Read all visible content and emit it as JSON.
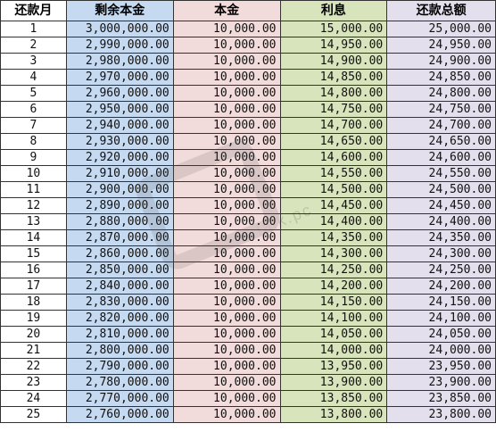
{
  "headers": {
    "month": "还款月",
    "remaining": "剩余本金",
    "principal": "本金",
    "interest": "利息",
    "total": "还款总额"
  },
  "rows": [
    {
      "month": "1",
      "remaining": "3,000,000.00",
      "principal": "10,000.00",
      "interest": "15,000.00",
      "total": "25,000.00"
    },
    {
      "month": "2",
      "remaining": "2,990,000.00",
      "principal": "10,000.00",
      "interest": "14,950.00",
      "total": "24,950.00"
    },
    {
      "month": "3",
      "remaining": "2,980,000.00",
      "principal": "10,000.00",
      "interest": "14,900.00",
      "total": "24,900.00"
    },
    {
      "month": "4",
      "remaining": "2,970,000.00",
      "principal": "10,000.00",
      "interest": "14,850.00",
      "total": "24,850.00"
    },
    {
      "month": "5",
      "remaining": "2,960,000.00",
      "principal": "10,000.00",
      "interest": "14,800.00",
      "total": "24,800.00"
    },
    {
      "month": "6",
      "remaining": "2,950,000.00",
      "principal": "10,000.00",
      "interest": "14,750.00",
      "total": "24,750.00"
    },
    {
      "month": "7",
      "remaining": "2,940,000.00",
      "principal": "10,000.00",
      "interest": "14,700.00",
      "total": "24,700.00"
    },
    {
      "month": "8",
      "remaining": "2,930,000.00",
      "principal": "10,000.00",
      "interest": "14,650.00",
      "total": "24,650.00"
    },
    {
      "month": "9",
      "remaining": "2,920,000.00",
      "principal": "10,000.00",
      "interest": "14,600.00",
      "total": "24,600.00"
    },
    {
      "month": "10",
      "remaining": "2,910,000.00",
      "principal": "10,000.00",
      "interest": "14,550.00",
      "total": "24,550.00"
    },
    {
      "month": "11",
      "remaining": "2,900,000.00",
      "principal": "10,000.00",
      "interest": "14,500.00",
      "total": "24,500.00"
    },
    {
      "month": "12",
      "remaining": "2,890,000.00",
      "principal": "10,000.00",
      "interest": "14,450.00",
      "total": "24,450.00"
    },
    {
      "month": "13",
      "remaining": "2,880,000.00",
      "principal": "10,000.00",
      "interest": "14,400.00",
      "total": "24,400.00"
    },
    {
      "month": "14",
      "remaining": "2,870,000.00",
      "principal": "10,000.00",
      "interest": "14,350.00",
      "total": "24,350.00"
    },
    {
      "month": "15",
      "remaining": "2,860,000.00",
      "principal": "10,000.00",
      "interest": "14,300.00",
      "total": "24,300.00"
    },
    {
      "month": "16",
      "remaining": "2,850,000.00",
      "principal": "10,000.00",
      "interest": "14,250.00",
      "total": "24,250.00"
    },
    {
      "month": "17",
      "remaining": "2,840,000.00",
      "principal": "10,000.00",
      "interest": "14,200.00",
      "total": "24,200.00"
    },
    {
      "month": "18",
      "remaining": "2,830,000.00",
      "principal": "10,000.00",
      "interest": "14,150.00",
      "total": "24,150.00"
    },
    {
      "month": "19",
      "remaining": "2,820,000.00",
      "principal": "10,000.00",
      "interest": "14,100.00",
      "total": "24,100.00"
    },
    {
      "month": "20",
      "remaining": "2,810,000.00",
      "principal": "10,000.00",
      "interest": "14,050.00",
      "total": "24,050.00"
    },
    {
      "month": "21",
      "remaining": "2,800,000.00",
      "principal": "10,000.00",
      "interest": "14,000.00",
      "total": "24,000.00"
    },
    {
      "month": "22",
      "remaining": "2,790,000.00",
      "principal": "10,000.00",
      "interest": "13,950.00",
      "total": "23,950.00"
    },
    {
      "month": "23",
      "remaining": "2,780,000.00",
      "principal": "10,000.00",
      "interest": "13,900.00",
      "total": "23,900.00"
    },
    {
      "month": "24",
      "remaining": "2,770,000.00",
      "principal": "10,000.00",
      "interest": "13,850.00",
      "total": "23,850.00"
    },
    {
      "month": "25",
      "remaining": "2,760,000.00",
      "principal": "10,000.00",
      "interest": "13,800.00",
      "total": "23,800.00"
    }
  ],
  "colors": {
    "remaining_col": "#c5d9f1",
    "principal_col": "#f2dcdb",
    "interest_col": "#d8e4bc",
    "total_col": "#e4dfec",
    "grid_line": "#333333"
  },
  "watermark": {
    "text": "talk.pc",
    "icon": "site-logo-watermark"
  }
}
